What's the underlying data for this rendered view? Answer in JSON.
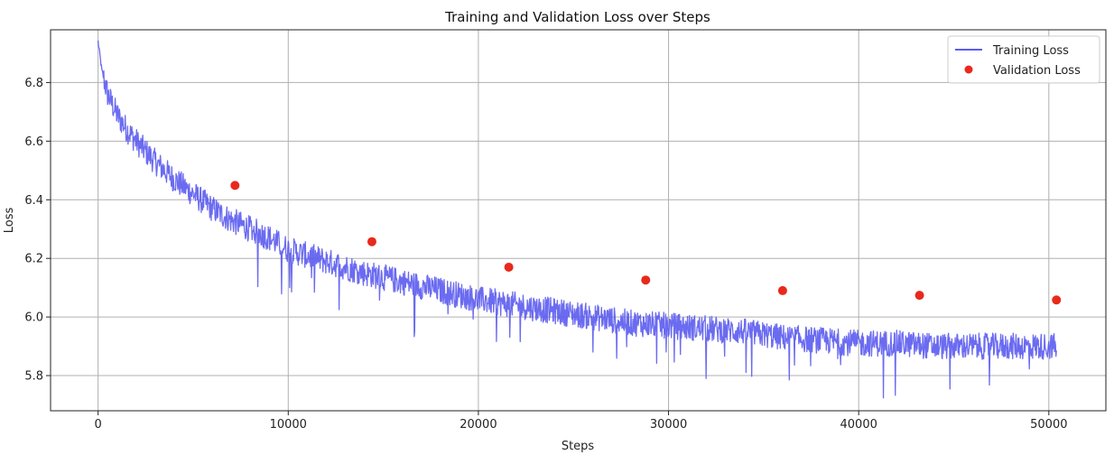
{
  "chart_data": {
    "type": "line",
    "title": "Training and Validation Loss over Steps",
    "xlabel": "Steps",
    "ylabel": "Loss",
    "xlim": [
      -2500,
      53000
    ],
    "ylim": [
      5.68,
      6.98
    ],
    "xticks": [
      0,
      10000,
      20000,
      30000,
      40000,
      50000
    ],
    "xtick_labels": [
      "0",
      "10000",
      "20000",
      "30000",
      "40000",
      "50000"
    ],
    "yticks": [
      5.8,
      6.0,
      6.2,
      6.4,
      6.6,
      6.8
    ],
    "ytick_labels": [
      "5.8",
      "6.0",
      "6.2",
      "6.4",
      "6.6",
      "6.8"
    ],
    "grid": true,
    "legend_position": "top-right",
    "series": [
      {
        "name": "Training Loss",
        "kind": "line",
        "color": "#5b5bf0",
        "x": [
          0,
          200,
          500,
          1000,
          1500,
          2000,
          3000,
          4000,
          5000,
          6000,
          7000,
          8000,
          9000,
          10000,
          12000,
          14000,
          16000,
          18000,
          20000,
          22000,
          24000,
          26000,
          28000,
          30000,
          32000,
          34000,
          36000,
          38000,
          40000,
          42000,
          44000,
          46000,
          48000,
          50000,
          50400
        ],
        "values": [
          6.94,
          6.84,
          6.76,
          6.69,
          6.64,
          6.6,
          6.53,
          6.47,
          6.42,
          6.37,
          6.33,
          6.3,
          6.27,
          6.23,
          6.19,
          6.15,
          6.12,
          6.09,
          6.06,
          6.04,
          6.02,
          6.0,
          5.98,
          5.97,
          5.96,
          5.95,
          5.93,
          5.92,
          5.91,
          5.91,
          5.9,
          5.9,
          5.9,
          5.9,
          5.9
        ]
      },
      {
        "name": "Validation Loss",
        "kind": "scatter",
        "color": "#e8291c",
        "x": [
          7200,
          14400,
          21600,
          28800,
          36000,
          43200,
          50400
        ],
        "values": [
          6.449,
          6.257,
          6.17,
          6.126,
          6.09,
          6.074,
          6.058
        ]
      }
    ]
  }
}
